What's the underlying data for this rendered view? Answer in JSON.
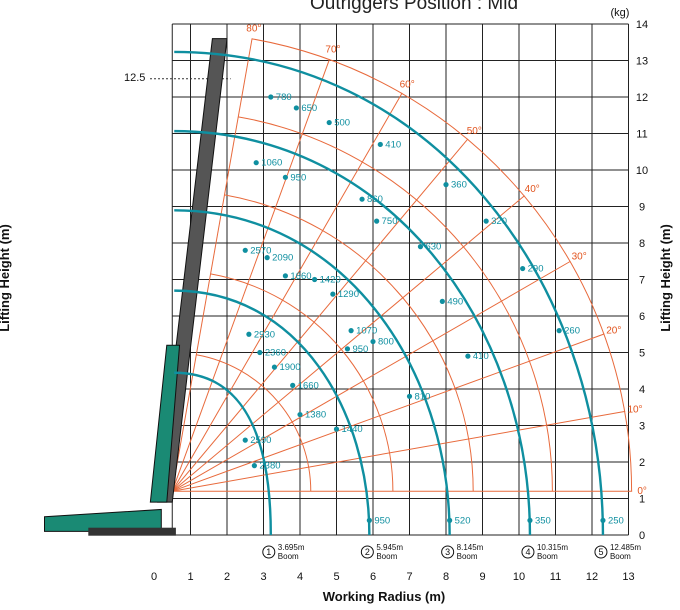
{
  "title": "Outriggers Position : Mid",
  "kg_label": "(kg)",
  "height_marker": "12.5",
  "chart_data": {
    "type": "line",
    "xlabel": "Working Radius (m)",
    "ylabel": "Lifting Height (m)",
    "xlim": [
      0,
      13
    ],
    "ylim": [
      0,
      14
    ],
    "x_ticks": [
      "0",
      "1",
      "2",
      "3",
      "4",
      "5",
      "6",
      "7",
      "8",
      "9",
      "10",
      "11",
      "12",
      "13"
    ],
    "y_ticks": [
      "0",
      "1",
      "2",
      "3",
      "4",
      "5",
      "6",
      "7",
      "8",
      "9",
      "10",
      "11",
      "12",
      "13",
      "14"
    ],
    "angles": [
      "0°",
      "10°",
      "20°",
      "30°",
      "40°",
      "50°",
      "60°",
      "70°",
      "80°"
    ],
    "booms": [
      {
        "num": "1",
        "length": "3.695m",
        "word": "Boom",
        "points": [
          {
            "x": 2.5,
            "y": 7.8,
            "label": "2570"
          },
          {
            "x": 2.6,
            "y": 5.5,
            "label": "2930"
          },
          {
            "x": 2.5,
            "y": 2.6,
            "label": "2590"
          },
          {
            "x": 2.75,
            "y": 1.9,
            "label": "2380"
          }
        ]
      },
      {
        "num": "2",
        "length": "5.945m",
        "word": "Boom",
        "points": [
          {
            "x": 3.2,
            "y": 12.0,
            "label": "780"
          },
          {
            "x": 2.8,
            "y": 10.2,
            "label": "1060"
          },
          {
            "x": 3.1,
            "y": 7.6,
            "label": "2090"
          },
          {
            "x": 3.6,
            "y": 7.1,
            "label": "1660"
          },
          {
            "x": 2.9,
            "y": 5.0,
            "label": "2360"
          },
          {
            "x": 3.3,
            "y": 4.6,
            "label": "1900"
          },
          {
            "x": 3.8,
            "y": 4.1,
            "label": "1660"
          },
          {
            "x": 4.0,
            "y": 3.3,
            "label": "1380"
          },
          {
            "x": 5.0,
            "y": 2.9,
            "label": "1440"
          },
          {
            "x": 5.9,
            "y": 0.4,
            "label": "950"
          }
        ]
      },
      {
        "num": "3",
        "length": "8.145m",
        "word": "Boom",
        "points": [
          {
            "x": 3.9,
            "y": 11.7,
            "label": "650"
          },
          {
            "x": 3.6,
            "y": 9.8,
            "label": "950"
          },
          {
            "x": 4.4,
            "y": 7.0,
            "label": "1420"
          },
          {
            "x": 4.9,
            "y": 6.6,
            "label": "1290"
          },
          {
            "x": 5.4,
            "y": 5.6,
            "label": "1070"
          },
          {
            "x": 5.3,
            "y": 5.1,
            "label": "950"
          },
          {
            "x": 7.0,
            "y": 3.8,
            "label": "810"
          },
          {
            "x": 8.1,
            "y": 0.4,
            "label": "520"
          }
        ]
      },
      {
        "num": "4",
        "length": "10.315m",
        "word": "Boom",
        "points": [
          {
            "x": 4.8,
            "y": 11.3,
            "label": "500"
          },
          {
            "x": 5.7,
            "y": 9.2,
            "label": "860"
          },
          {
            "x": 6.1,
            "y": 8.6,
            "label": "750"
          },
          {
            "x": 7.3,
            "y": 7.9,
            "label": "630"
          },
          {
            "x": 6.0,
            "y": 5.3,
            "label": "800"
          },
          {
            "x": 8.6,
            "y": 4.9,
            "label": "410"
          },
          {
            "x": 10.3,
            "y": 0.4,
            "label": "350"
          }
        ]
      },
      {
        "num": "5",
        "length": "12.485m",
        "word": "Boom",
        "points": [
          {
            "x": 6.2,
            "y": 10.7,
            "label": "410"
          },
          {
            "x": 8.0,
            "y": 9.6,
            "label": "360"
          },
          {
            "x": 9.1,
            "y": 8.6,
            "label": "320"
          },
          {
            "x": 7.9,
            "y": 6.4,
            "label": "490"
          },
          {
            "x": 10.1,
            "y": 7.3,
            "label": "290"
          },
          {
            "x": 11.1,
            "y": 5.6,
            "label": "260"
          },
          {
            "x": 12.3,
            "y": 0.4,
            "label": "250"
          }
        ]
      }
    ]
  }
}
